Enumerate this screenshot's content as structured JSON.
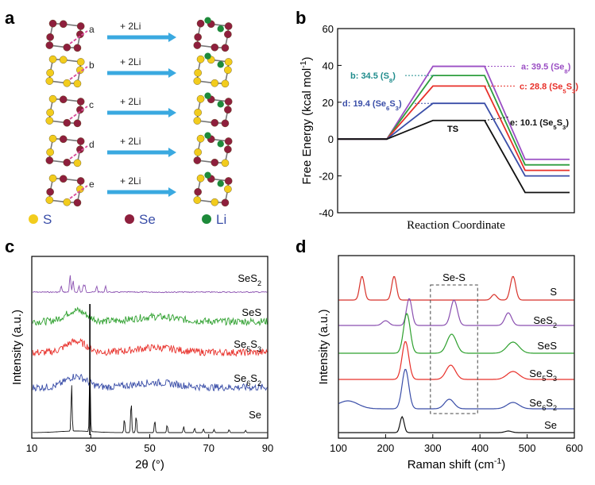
{
  "panels": {
    "a": "a",
    "b": "b",
    "c": "c",
    "d": "d"
  },
  "panel_a": {
    "reactions": [
      {
        "label": "+ 2Li",
        "site": "a"
      },
      {
        "label": "+ 2Li",
        "site": "b"
      },
      {
        "label": "+ 2Li",
        "site": "c"
      },
      {
        "label": "+ 2Li",
        "site": "d"
      },
      {
        "label": "+ 2Li",
        "site": "e"
      }
    ],
    "legend": [
      {
        "name": "S",
        "color": "#f2cc1d"
      },
      {
        "name": "Se",
        "color": "#8e1f3d"
      },
      {
        "name": "Li",
        "color": "#1d8a3a"
      }
    ],
    "colors": {
      "S": "#f2cc1d",
      "Se": "#8e1f3d",
      "Li": "#1d8a3a",
      "arrow": "#3aa9e0",
      "cut": "#d94c9b"
    }
  },
  "chart_data": [
    {
      "id": "b",
      "type": "line",
      "title": "",
      "xlabel": "Reaction Coordinate",
      "ylabel_main": "Free Energy (kcal mol",
      "ylabel_sup": "-1",
      "ylabel_end": ")",
      "ylim": [
        -40,
        60
      ],
      "yticks": [
        "-40",
        "-20",
        "0",
        "20",
        "40",
        "60"
      ],
      "ts_label": "TS",
      "series": [
        {
          "name": "a",
          "ts": 39.5,
          "final": -11,
          "color": "#9b4fc4"
        },
        {
          "name": "b",
          "ts": 34.5,
          "final": -14,
          "color": "#2e9e3e"
        },
        {
          "name": "c",
          "ts": 28.8,
          "final": -17,
          "color": "#e8302a"
        },
        {
          "name": "d",
          "ts": 19.4,
          "final": -20,
          "color": "#3a4ea8"
        },
        {
          "name": "e",
          "ts": 10.1,
          "final": -29,
          "color": "#111111"
        }
      ],
      "annotations": [
        {
          "key": "a",
          "prefix": "a: 39.5 (Se",
          "sub": "8",
          "suffix": ")",
          "color": "#9b4fc4"
        },
        {
          "key": "b",
          "prefix": "b: 34.5 (S",
          "sub": "8",
          "suffix": ")",
          "color": "#1f8c8c"
        },
        {
          "key": "c",
          "prefix": "c: 28.8 (Se",
          "sub": "5",
          "mid": "S",
          "sub2": "3",
          "suffix": ")",
          "color": "#e8302a"
        },
        {
          "key": "d",
          "prefix": "d: 19.4 (Se",
          "sub": "6",
          "mid": "S",
          "sub2": "3",
          "suffix": ")",
          "color": "#3a4ea8"
        },
        {
          "key": "e",
          "prefix": "e: 10.1 (Se",
          "sub": "5",
          "mid": "S",
          "sub2": "3",
          "suffix": ")",
          "color": "#111111"
        }
      ]
    },
    {
      "id": "c",
      "type": "line",
      "xlabel": "2θ (°)",
      "ylabel": "Intensity (a.u.)",
      "xlim": [
        10,
        90
      ],
      "xticks": [
        "10",
        "30",
        "50",
        "70",
        "90"
      ],
      "series": [
        {
          "name": "SeS",
          "sub": "2",
          "color": "#8a4fb0"
        },
        {
          "name": "SeS",
          "sub": "",
          "color": "#2ea02e"
        },
        {
          "name": "Se",
          "sub": "5",
          "mid": "S",
          "sub2": "3",
          "color": "#e8302a"
        },
        {
          "name": "Se",
          "sub": "6",
          "mid": "S",
          "sub2": "2",
          "color": "#3a4ea8"
        },
        {
          "name": "Se",
          "sub": "",
          "color": "#111111"
        }
      ],
      "se_peaks": [
        23.5,
        29.7,
        41.4,
        43.7,
        45.4,
        51.7,
        55.9,
        61.5,
        65.2,
        68.2,
        71.8,
        76.9,
        82.5
      ],
      "ses2_peaks": [
        20,
        23,
        24,
        26,
        27.5,
        28,
        32,
        35
      ]
    },
    {
      "id": "d",
      "type": "line",
      "xlabel": "Raman shift (cm",
      "xlabel_sup": "-1",
      "xlabel_end": ")",
      "ylabel": "Intensity (a.u.)",
      "xlim": [
        100,
        600
      ],
      "xticks": [
        "100",
        "200",
        "300",
        "400",
        "500",
        "600"
      ],
      "box_label": "Se-S",
      "series": [
        {
          "name": "S",
          "sub": "",
          "color": "#d8322a",
          "peaks": [
            150,
            218,
            470
          ]
        },
        {
          "name": "SeS",
          "sub": "2",
          "color": "#8a4fb0",
          "peaks": [
            250,
            345,
            460
          ]
        },
        {
          "name": "SeS",
          "sub": "",
          "color": "#2ea02e",
          "peaks": [
            245,
            340,
            470
          ]
        },
        {
          "name": "Se",
          "sub": "5",
          "mid": "S",
          "sub2": "3",
          "color": "#e8302a",
          "peaks": [
            242,
            338,
            470
          ]
        },
        {
          "name": "Se",
          "sub": "6",
          "mid": "S",
          "sub2": "2",
          "color": "#3a4ea8",
          "peaks": [
            242,
            335,
            470
          ]
        },
        {
          "name": "Se",
          "sub": "",
          "color": "#111111",
          "peaks": [
            235,
            460
          ]
        }
      ]
    }
  ]
}
